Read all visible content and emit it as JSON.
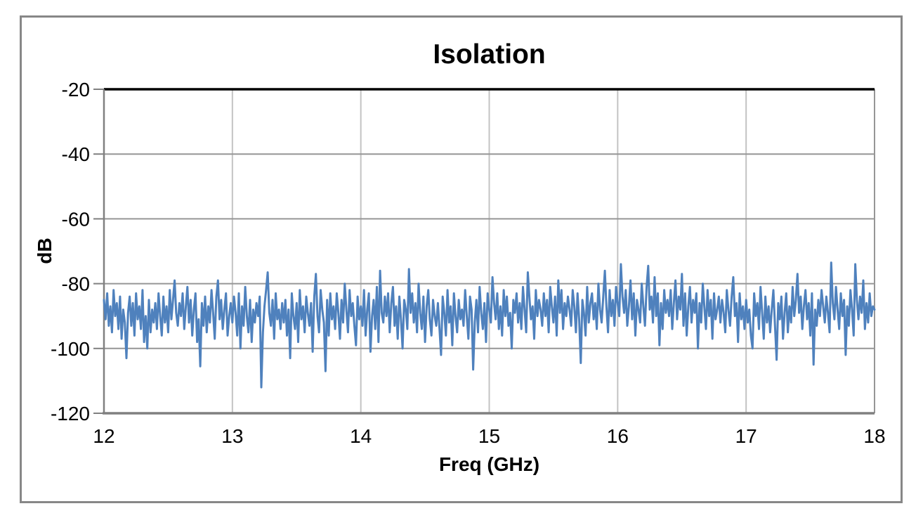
{
  "chart_data": {
    "type": "line",
    "title": "Isolation",
    "xlabel": "Freq (GHz)",
    "ylabel": "dB",
    "xlim": [
      12,
      18
    ],
    "ylim": [
      -120,
      -20
    ],
    "x_ticks": [
      12,
      13,
      14,
      15,
      16,
      17,
      18
    ],
    "y_ticks": [
      -20,
      -40,
      -60,
      -80,
      -100,
      -120
    ],
    "grid": true,
    "legend": false,
    "colors": {
      "series": "#4f81bd",
      "horizontal_gridline": "#969696",
      "vertical_gridline": "#c3c3c3",
      "axis_line": "#808080",
      "plot_top_border": "#000000",
      "outer_frame": "#878787",
      "text": "#000000"
    },
    "series": [
      {
        "name": "Isolation",
        "color": "#4f81bd",
        "x_start": 12,
        "x_step": 0.0125,
        "values": [
          -85,
          -91,
          -83,
          -93,
          -87,
          -95,
          -82,
          -90,
          -86,
          -94,
          -84,
          -97,
          -88,
          -92,
          -103,
          -89,
          -84,
          -93,
          -86,
          -96,
          -83,
          -91,
          -87,
          -94,
          -82,
          -98,
          -90,
          -100,
          -85,
          -95,
          -88,
          -92,
          -86,
          -94,
          -83,
          -90,
          -96,
          -84,
          -92,
          -87,
          -95,
          -82,
          -91,
          -85,
          -79,
          -89,
          -93,
          -86,
          -90,
          -83,
          -94,
          -87,
          -81,
          -92,
          -85,
          -96,
          -88,
          -83,
          -98,
          -91,
          -105.5,
          -86,
          -93,
          -84,
          -95,
          -87,
          -92,
          -82,
          -89,
          -97,
          -84,
          -79,
          -91,
          -85,
          -94,
          -88,
          -83,
          -96,
          -90,
          -86,
          -92,
          -84,
          -89,
          -96,
          -83,
          -100,
          -87,
          -93,
          -81,
          -90,
          -95,
          -85,
          -98,
          -88,
          -92,
          -86,
          -90,
          -84,
          -112,
          -95,
          -87,
          -82,
          -76.5,
          -89,
          -93,
          -85,
          -97,
          -83,
          -91,
          -88,
          -94,
          -86,
          -92,
          -85,
          -96,
          -88,
          -103,
          -83,
          -90,
          -94,
          -86,
          -98,
          -82,
          -91,
          -87,
          -95,
          -84,
          -89,
          -93,
          -86,
          -101,
          -84,
          -77,
          -90,
          -95,
          -82,
          -88,
          -92,
          -107,
          -85,
          -96,
          -83,
          -91,
          -87,
          -94,
          -83,
          -89,
          -97,
          -85,
          -92,
          -80,
          -88,
          -95,
          -82,
          -90,
          -86,
          -93,
          -99,
          -84,
          -91,
          -87,
          -93,
          -82,
          -96,
          -88,
          -83,
          -101,
          -90,
          -85,
          -94,
          -81,
          -98,
          -76,
          -89,
          -92,
          -84,
          -90,
          -83,
          -95,
          -86,
          -81,
          -93,
          -87,
          -97,
          -84,
          -91,
          -100,
          -85,
          -88,
          -94,
          -75.5,
          -89,
          -83,
          -92,
          -86,
          -95,
          -80,
          -89,
          -94,
          -84,
          -98,
          -87,
          -82,
          -91,
          -96,
          -85,
          -90,
          -93,
          -86,
          -94,
          -102,
          -84,
          -89,
          -96,
          -82,
          -92,
          -87,
          -99,
          -83,
          -90,
          -95,
          -85,
          -91,
          -88,
          -93,
          -82,
          -90,
          -97,
          -84,
          -88,
          -106.5,
          -92,
          -85,
          -95,
          -81,
          -89,
          -94,
          -86,
          -98,
          -83,
          -88,
          -92,
          -78,
          -86,
          -91,
          -83,
          -94,
          -87,
          -96,
          -82,
          -90,
          -84,
          -93,
          -89,
          -100,
          -85,
          -89,
          -83,
          -92,
          -86,
          -94,
          -81,
          -88,
          -95,
          -76.5,
          -84,
          -91,
          -87,
          -97,
          -82,
          -90,
          -85,
          -88,
          -93,
          -83,
          -90,
          -85,
          -95,
          -81,
          -87,
          -92,
          -84,
          -96,
          -79,
          -89,
          -82,
          -94,
          -86,
          -90,
          -84,
          -88,
          -93,
          -82,
          -87,
          -95,
          -83,
          -91,
          -104.5,
          -85,
          -89,
          -96,
          -81,
          -92,
          -86,
          -83,
          -91,
          -86,
          -94,
          -80,
          -88,
          -92,
          -84,
          -76,
          -87,
          -95,
          -82,
          -90,
          -85,
          -93,
          -81,
          -86,
          -90,
          -74,
          -84,
          -89,
          -82,
          -93,
          -87,
          -79,
          -91,
          -83,
          -96,
          -85,
          -88,
          -92,
          -80,
          -87,
          -93,
          -81,
          -74.5,
          -88,
          -84,
          -92,
          -78,
          -90,
          -83,
          -99,
          -86,
          -94,
          -82,
          -89,
          -85,
          -90,
          -82,
          -94,
          -86,
          -79,
          -91,
          -84,
          -88,
          -77,
          -93,
          -83,
          -96,
          -87,
          -81,
          -92,
          -85,
          -89,
          -83,
          -100,
          -86,
          -92,
          -80,
          -87,
          -94,
          -82,
          -90,
          -85,
          -97,
          -83,
          -91,
          -88,
          -84,
          -92,
          -85,
          -89,
          -95,
          -82,
          -88,
          -93,
          -84,
          -78,
          -90,
          -86,
          -98,
          -83,
          -91,
          -87,
          -94,
          -85,
          -92,
          -88,
          -96,
          -100,
          -83,
          -90,
          -86,
          -94,
          -81,
          -89,
          -97,
          -84,
          -92,
          -87,
          -95,
          -88,
          -82,
          -93,
          -103.5,
          -86,
          -91,
          -84,
          -97,
          -89,
          -83,
          -95,
          -87,
          -92,
          -81,
          -90,
          -85,
          -77,
          -89,
          -84,
          -94,
          -87,
          -82,
          -91,
          -86,
          -96,
          -83,
          -105,
          -88,
          -93,
          -85,
          -90,
          -82,
          -87,
          -92,
          -84,
          -89,
          -95,
          -73.5,
          -86,
          -91,
          -81,
          -88,
          -94,
          -83,
          -90,
          -85,
          -102,
          -87,
          -93,
          -82,
          -88,
          -96,
          -74,
          -85,
          -91,
          -84,
          -89,
          -79,
          -94,
          -86,
          -92,
          -83,
          -90,
          -87,
          -88
        ]
      }
    ]
  }
}
